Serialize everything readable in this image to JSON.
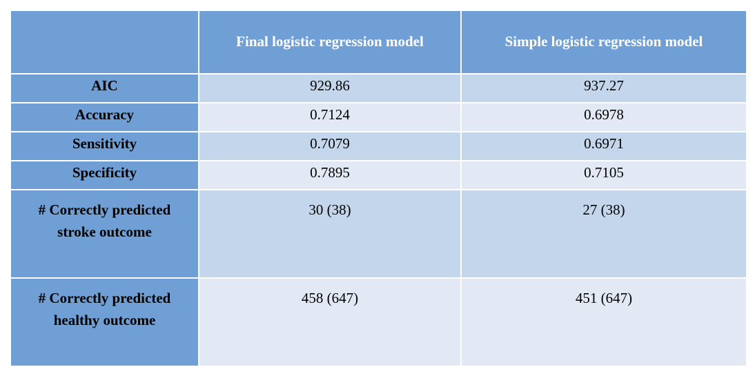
{
  "table": {
    "columns": [
      "",
      "Final logistic regression model",
      "Simple logistic regression model"
    ],
    "rows": [
      {
        "label": "AIC",
        "final": "929.86",
        "simple": "937.27"
      },
      {
        "label": "Accuracy",
        "final": "0.7124",
        "simple": "0.6978"
      },
      {
        "label": "Sensitivity",
        "final": "0.7079",
        "simple": "0.6971"
      },
      {
        "label": "Specificity",
        "final": "0.7895",
        "simple": "0.7105"
      },
      {
        "label_line1": "# Correctly predicted",
        "label_line2": "stroke outcome",
        "final": "30 (38)",
        "simple": "27 (38)"
      },
      {
        "label_line1": "# Correctly predicted",
        "label_line2": "healthy outcome",
        "final": "458 (647)",
        "simple": "451 (647)"
      }
    ]
  },
  "colors": {
    "header_bg": "#6f9fd4",
    "band_dark": "#c4d6ec",
    "band_light": "#e2e9f4",
    "header_text": "#ffffff",
    "body_text": "#000000"
  }
}
